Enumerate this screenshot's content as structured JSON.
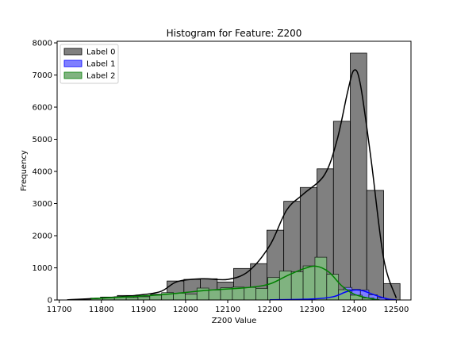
{
  "chart_data": {
    "type": "bar",
    "title": "Histogram for Feature: Z200",
    "xlabel": "Z200 Value",
    "ylabel": "Frequency",
    "xlim": [
      11695,
      12535
    ],
    "ylim": [
      0,
      8050
    ],
    "xticks": [
      11700,
      11800,
      11900,
      12000,
      12100,
      12200,
      12300,
      12400,
      12500
    ],
    "yticks": [
      0,
      1000,
      2000,
      3000,
      4000,
      5000,
      6000,
      7000,
      8000
    ],
    "legend_position": "top-left",
    "grid": false,
    "series": [
      {
        "name": "Label 0",
        "color": "#808080",
        "edge": "#000000",
        "kde_color": "#000000",
        "bins": [
          {
            "x0": 11719,
            "x1": 11759,
            "count": 10
          },
          {
            "x0": 11759,
            "x1": 11798,
            "count": 30
          },
          {
            "x0": 11798,
            "x1": 11838,
            "count": 90
          },
          {
            "x0": 11838,
            "x1": 11877,
            "count": 140
          },
          {
            "x0": 11877,
            "x1": 11917,
            "count": 130
          },
          {
            "x0": 11917,
            "x1": 11956,
            "count": 180
          },
          {
            "x0": 11956,
            "x1": 11996,
            "count": 590
          },
          {
            "x0": 11996,
            "x1": 12035,
            "count": 640
          },
          {
            "x0": 12035,
            "x1": 12075,
            "count": 660
          },
          {
            "x0": 12075,
            "x1": 12114,
            "count": 560
          },
          {
            "x0": 12114,
            "x1": 12154,
            "count": 980
          },
          {
            "x0": 12154,
            "x1": 12193,
            "count": 1130
          },
          {
            "x0": 12193,
            "x1": 12233,
            "count": 2170
          },
          {
            "x0": 12233,
            "x1": 12272,
            "count": 3070
          },
          {
            "x0": 12272,
            "x1": 12312,
            "count": 3500
          },
          {
            "x0": 12312,
            "x1": 12351,
            "count": 4080
          },
          {
            "x0": 12351,
            "x1": 12391,
            "count": 5560
          },
          {
            "x0": 12391,
            "x1": 12430,
            "count": 7680
          },
          {
            "x0": 12430,
            "x1": 12470,
            "count": 3410
          },
          {
            "x0": 12470,
            "x1": 12509,
            "count": 510
          }
        ],
        "kde": [
          [
            11720,
            5
          ],
          [
            11800,
            60
          ],
          [
            11880,
            140
          ],
          [
            11940,
            260
          ],
          [
            11980,
            570
          ],
          [
            12040,
            660
          ],
          [
            12100,
            640
          ],
          [
            12150,
            900
          ],
          [
            12200,
            1700
          ],
          [
            12240,
            2800
          ],
          [
            12280,
            3300
          ],
          [
            12330,
            3900
          ],
          [
            12360,
            5000
          ],
          [
            12385,
            6500
          ],
          [
            12400,
            7150
          ],
          [
            12415,
            6700
          ],
          [
            12440,
            4400
          ],
          [
            12470,
            1300
          ],
          [
            12500,
            60
          ]
        ]
      },
      {
        "name": "Label 1",
        "color": "#7f7fff",
        "edge": "#0000ff",
        "kde_color": "#0000ff",
        "bins": [
          {
            "x0": 12215,
            "x1": 12235,
            "count": 8
          },
          {
            "x0": 12235,
            "x1": 12255,
            "count": 12
          },
          {
            "x0": 12255,
            "x1": 12275,
            "count": 15
          },
          {
            "x0": 12275,
            "x1": 12295,
            "count": 20
          },
          {
            "x0": 12295,
            "x1": 12315,
            "count": 30
          },
          {
            "x0": 12315,
            "x1": 12335,
            "count": 50
          },
          {
            "x0": 12335,
            "x1": 12355,
            "count": 90
          },
          {
            "x0": 12355,
            "x1": 12375,
            "count": 120
          },
          {
            "x0": 12375,
            "x1": 12395,
            "count": 390
          },
          {
            "x0": 12395,
            "x1": 12415,
            "count": 330
          },
          {
            "x0": 12415,
            "x1": 12435,
            "count": 310
          },
          {
            "x0": 12435,
            "x1": 12455,
            "count": 160
          },
          {
            "x0": 12455,
            "x1": 12475,
            "count": 60
          },
          {
            "x0": 12475,
            "x1": 12495,
            "count": 15
          }
        ],
        "kde": [
          [
            12200,
            5
          ],
          [
            12300,
            30
          ],
          [
            12350,
            100
          ],
          [
            12380,
            250
          ],
          [
            12400,
            310
          ],
          [
            12420,
            290
          ],
          [
            12450,
            150
          ],
          [
            12480,
            30
          ],
          [
            12500,
            5
          ]
        ]
      },
      {
        "name": "Label 2",
        "color": "#80b380",
        "edge": "#008000",
        "kde_color": "#008000",
        "bins": [
          {
            "x0": 11775,
            "x1": 11803,
            "count": 60
          },
          {
            "x0": 11803,
            "x1": 11831,
            "count": 90
          },
          {
            "x0": 11831,
            "x1": 11859,
            "count": 100
          },
          {
            "x0": 11859,
            "x1": 11887,
            "count": 80
          },
          {
            "x0": 11887,
            "x1": 11915,
            "count": 100
          },
          {
            "x0": 11915,
            "x1": 11943,
            "count": 150
          },
          {
            "x0": 11943,
            "x1": 11971,
            "count": 230
          },
          {
            "x0": 11971,
            "x1": 11999,
            "count": 210
          },
          {
            "x0": 11999,
            "x1": 12027,
            "count": 180
          },
          {
            "x0": 12027,
            "x1": 12055,
            "count": 370
          },
          {
            "x0": 12055,
            "x1": 12083,
            "count": 310
          },
          {
            "x0": 12083,
            "x1": 12111,
            "count": 380
          },
          {
            "x0": 12111,
            "x1": 12139,
            "count": 400
          },
          {
            "x0": 12139,
            "x1": 12167,
            "count": 390
          },
          {
            "x0": 12167,
            "x1": 12195,
            "count": 360
          },
          {
            "x0": 12195,
            "x1": 12223,
            "count": 700
          },
          {
            "x0": 12223,
            "x1": 12251,
            "count": 900
          },
          {
            "x0": 12251,
            "x1": 12279,
            "count": 880
          },
          {
            "x0": 12279,
            "x1": 12307,
            "count": 1060
          },
          {
            "x0": 12307,
            "x1": 12335,
            "count": 1330
          },
          {
            "x0": 12335,
            "x1": 12363,
            "count": 800
          },
          {
            "x0": 12363,
            "x1": 12391,
            "count": 320
          },
          {
            "x0": 12391,
            "x1": 12419,
            "count": 150
          },
          {
            "x0": 12419,
            "x1": 12447,
            "count": 60
          }
        ],
        "kde": [
          [
            11775,
            40
          ],
          [
            11850,
            90
          ],
          [
            11950,
            170
          ],
          [
            12050,
            300
          ],
          [
            12150,
            390
          ],
          [
            12200,
            500
          ],
          [
            12240,
            750
          ],
          [
            12280,
            970
          ],
          [
            12310,
            1050
          ],
          [
            12340,
            870
          ],
          [
            12370,
            450
          ],
          [
            12400,
            180
          ],
          [
            12440,
            40
          ],
          [
            12460,
            5
          ]
        ]
      }
    ]
  }
}
